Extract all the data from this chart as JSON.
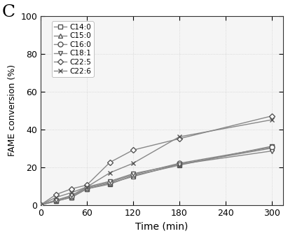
{
  "title": "C",
  "xlabel": "Time (min)",
  "ylabel": "FAME conversion (%)",
  "xlim": [
    0,
    315
  ],
  "ylim": [
    0,
    100
  ],
  "xticks": [
    0,
    60,
    120,
    180,
    240,
    300
  ],
  "yticks": [
    0,
    20,
    40,
    60,
    80,
    100
  ],
  "background_color": "#f5f5f5",
  "grid_color": "#d0d0d0",
  "series": [
    {
      "label": "C14:0",
      "marker": "s",
      "x": [
        0,
        20,
        40,
        60,
        90,
        120,
        180,
        300
      ],
      "y": [
        0,
        2.0,
        4.0,
        8.5,
        11.0,
        15.5,
        21.0,
        31.0
      ]
    },
    {
      "label": "C15:0",
      "marker": "^",
      "x": [
        0,
        20,
        40,
        60,
        90,
        120,
        180,
        300
      ],
      "y": [
        0,
        2.0,
        4.0,
        8.5,
        11.5,
        15.0,
        21.5,
        30.0
      ]
    },
    {
      "label": "C16:0",
      "marker": "o",
      "x": [
        0,
        20,
        40,
        60,
        90,
        120,
        180,
        300
      ],
      "y": [
        0,
        2.5,
        4.5,
        9.0,
        12.0,
        16.0,
        22.0,
        30.5
      ]
    },
    {
      "label": "C18:1",
      "marker": "v",
      "x": [
        0,
        20,
        40,
        60,
        90,
        120,
        180,
        300
      ],
      "y": [
        0,
        2.5,
        5.0,
        9.5,
        12.5,
        16.5,
        21.5,
        28.5
      ]
    },
    {
      "label": "C22:5",
      "marker": "D",
      "x": [
        0,
        20,
        40,
        60,
        90,
        120,
        180,
        300
      ],
      "y": [
        0,
        5.5,
        8.5,
        10.5,
        22.5,
        29.0,
        35.0,
        47.0
      ]
    },
    {
      "label": "C22:6",
      "marker": "x",
      "x": [
        0,
        20,
        40,
        60,
        90,
        120,
        180,
        300
      ],
      "y": [
        0,
        4.0,
        6.5,
        9.5,
        17.0,
        22.0,
        36.0,
        45.0
      ]
    }
  ],
  "line_color": "#888888",
  "marker_edge_color": "#555555",
  "marker_face_color": "white",
  "marker_size": 4,
  "line_width": 1.0,
  "legend_fontsize": 7.5,
  "axis_fontsize": 9,
  "xlabel_fontsize": 10,
  "title_fontsize": 18
}
